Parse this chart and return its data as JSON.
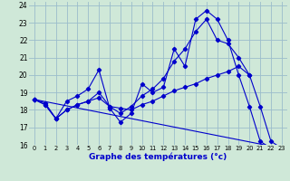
{
  "background_color": "#cce8d4",
  "plot_bg": "#d4eee4",
  "line_color": "#0000cc",
  "grid_color": "#99bbcc",
  "title": "Graphe des températures (°c)",
  "xlim": [
    -0.5,
    23.5
  ],
  "ylim": [
    16,
    24.2
  ],
  "yticks": [
    16,
    17,
    18,
    19,
    20,
    21,
    22,
    23,
    24
  ],
  "xticks": [
    0,
    1,
    2,
    3,
    4,
    5,
    6,
    7,
    8,
    9,
    10,
    11,
    12,
    13,
    14,
    15,
    16,
    17,
    18,
    19,
    20,
    21,
    22,
    23
  ],
  "series": [
    {
      "x": [
        0,
        1,
        2,
        3,
        4,
        5,
        6,
        7,
        8,
        9,
        10,
        11,
        12,
        13,
        14,
        15,
        16,
        17,
        18,
        19,
        20,
        21,
        22,
        23
      ],
      "y": [
        18.6,
        18.3,
        17.5,
        18.5,
        18.8,
        19.2,
        20.3,
        18.1,
        17.3,
        17.8,
        19.5,
        19.0,
        19.3,
        21.5,
        20.5,
        23.2,
        23.7,
        23.2,
        22.0,
        20.0,
        18.2,
        16.2,
        15.8,
        null
      ]
    },
    {
      "x": [
        0,
        1,
        2,
        3,
        4,
        5,
        6,
        7,
        8,
        9,
        10,
        11,
        12,
        13,
        14,
        15,
        16,
        17,
        18,
        19,
        20
      ],
      "y": [
        18.6,
        18.4,
        17.5,
        18.0,
        18.3,
        18.5,
        18.7,
        18.2,
        18.1,
        18.0,
        18.3,
        18.5,
        18.8,
        19.1,
        19.3,
        19.5,
        19.8,
        20.0,
        20.2,
        20.5,
        20.0
      ]
    },
    {
      "x": [
        0,
        1,
        2,
        3,
        4,
        5,
        6,
        7,
        8,
        9,
        10,
        11,
        12,
        13,
        14,
        15,
        16,
        17,
        18,
        19,
        20,
        21,
        22,
        23
      ],
      "y": [
        18.6,
        18.3,
        17.5,
        18.0,
        18.3,
        18.5,
        19.0,
        18.2,
        17.8,
        18.2,
        18.8,
        19.2,
        19.8,
        20.8,
        21.5,
        22.5,
        23.2,
        22.0,
        21.8,
        21.0,
        20.0,
        18.2,
        16.2,
        15.8
      ]
    },
    {
      "x": [
        0,
        23
      ],
      "y": [
        18.6,
        15.8
      ]
    }
  ]
}
